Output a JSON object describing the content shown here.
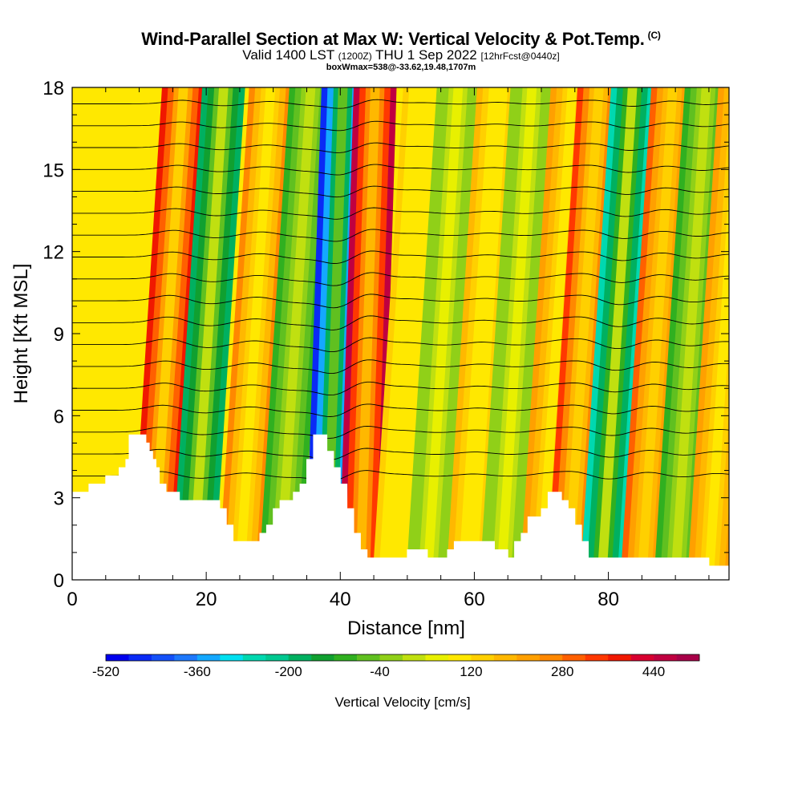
{
  "header": {
    "title": "Wind-Parallel Section at Max W: Vertical Velocity & Pot.Temp.",
    "copyright": "(C)",
    "valid_prefix": "Valid 1400 LST",
    "valid_utc": "(1200Z)",
    "valid_date": "THU 1 Sep 2022",
    "forecast": "[12hrFcst@0440z]",
    "box_info": "boxWmax=538@-33.62,19.48,1707m"
  },
  "chart_data": {
    "type": "heatmap",
    "xlabel": "Distance [nm]",
    "ylabel": "Height [Kft MSL]",
    "xlim": [
      0,
      98
    ],
    "ylim": [
      0,
      18
    ],
    "x_ticks": [
      0,
      20,
      40,
      60,
      80
    ],
    "y_ticks": [
      0,
      3,
      6,
      9,
      12,
      15,
      18
    ],
    "colorbar": {
      "title": "Vertical Velocity [cm/s]",
      "labels": [
        -520,
        -360,
        -200,
        -40,
        120,
        280,
        440
      ],
      "min": -520,
      "max": 520,
      "step": 40,
      "colors": [
        "#0000ee",
        "#0a2af5",
        "#1450f8",
        "#1e78fb",
        "#14a8ff",
        "#00e0f0",
        "#00d8b0",
        "#00c890",
        "#00b060",
        "#10a030",
        "#30b020",
        "#60c020",
        "#90d018",
        "#c0e010",
        "#e8f000",
        "#ffe800",
        "#ffd000",
        "#ffb800",
        "#ffa000",
        "#ff8800",
        "#ff6000",
        "#ff3800",
        "#f01800",
        "#d80030",
        "#c00040",
        "#a80048"
      ]
    },
    "terrain_profile": {
      "x": [
        0,
        2,
        2.5,
        4,
        5,
        6,
        7,
        8,
        8.5,
        10,
        11,
        11.5,
        12,
        12.5,
        13,
        14,
        16,
        17,
        18,
        21,
        22,
        23,
        24,
        25,
        27,
        28,
        29,
        30,
        31,
        32,
        33,
        34,
        35,
        36,
        37,
        38,
        39,
        40,
        41,
        42,
        43,
        44,
        45,
        46,
        47,
        48,
        49,
        50,
        51,
        52,
        53,
        54,
        55,
        56,
        57,
        58,
        59,
        60,
        61,
        62,
        63,
        64,
        65,
        66,
        67,
        68,
        69,
        70,
        71,
        72,
        73,
        74,
        75,
        76,
        77,
        88,
        93,
        95,
        96,
        98
      ],
      "height_kft": [
        3.2,
        3.2,
        3.5,
        3.5,
        3.8,
        3.8,
        4.1,
        4.4,
        5.3,
        5.3,
        5.0,
        4.7,
        4.4,
        4.1,
        3.5,
        3.2,
        2.9,
        2.9,
        2.9,
        2.9,
        2.6,
        2.0,
        1.4,
        1.4,
        1.4,
        1.7,
        2.0,
        2.6,
        2.9,
        2.9,
        3.2,
        3.5,
        4.4,
        5.3,
        5.3,
        4.7,
        4.1,
        3.5,
        2.6,
        1.7,
        1.1,
        0.8,
        0.8,
        0.8,
        0.8,
        0.8,
        0.8,
        1.1,
        1.1,
        1.1,
        0.8,
        0.8,
        0.8,
        1.1,
        1.4,
        1.4,
        1.4,
        1.4,
        1.4,
        1.4,
        1.1,
        1.1,
        0.8,
        1.4,
        1.7,
        2.3,
        2.3,
        2.6,
        3.2,
        3.2,
        2.9,
        2.6,
        2.0,
        1.4,
        0.8,
        0.8,
        0.8,
        0.5,
        0.5,
        0.5
      ]
    },
    "bands": [
      {
        "x_bottom": 12,
        "lean": 4.6,
        "value": 360
      },
      {
        "x_bottom": 18,
        "lean": 4.6,
        "value": -200
      },
      {
        "x_bottom": 25,
        "lean": 4.6,
        "value": 240
      },
      {
        "x_bottom": 31,
        "lean": 4.6,
        "value": -120
      },
      {
        "x_bottom": 38,
        "lean": 2.4,
        "value": -480
      },
      {
        "x_bottom": 43,
        "lean": 2.2,
        "value": 460
      },
      {
        "x_bottom": 48,
        "lean": 4.6,
        "value": 120
      },
      {
        "x_bottom": 53,
        "lean": 4.6,
        "value": -40
      },
      {
        "x_bottom": 59,
        "lean": 4.6,
        "value": 160
      },
      {
        "x_bottom": 64,
        "lean": 4.6,
        "value": -40
      },
      {
        "x_bottom": 70,
        "lean": 4.6,
        "value": 200
      },
      {
        "x_bottom": 74,
        "lean": 4.6,
        "value": 320
      },
      {
        "x_bottom": 79,
        "lean": 4.6,
        "value": -280
      },
      {
        "x_bottom": 85,
        "lean": 4.6,
        "value": 300
      },
      {
        "x_bottom": 90,
        "lean": 4.6,
        "value": -120
      },
      {
        "x_bottom": 95,
        "lean": 4.6,
        "value": 200
      }
    ],
    "isentropes_kft": [
      3.8,
      4.6,
      5.4,
      6.2,
      7.0,
      7.8,
      8.6,
      9.4,
      10.2,
      11.0,
      11.8,
      12.6,
      13.4,
      14.2,
      15.0,
      15.8,
      16.6,
      17.4
    ]
  }
}
